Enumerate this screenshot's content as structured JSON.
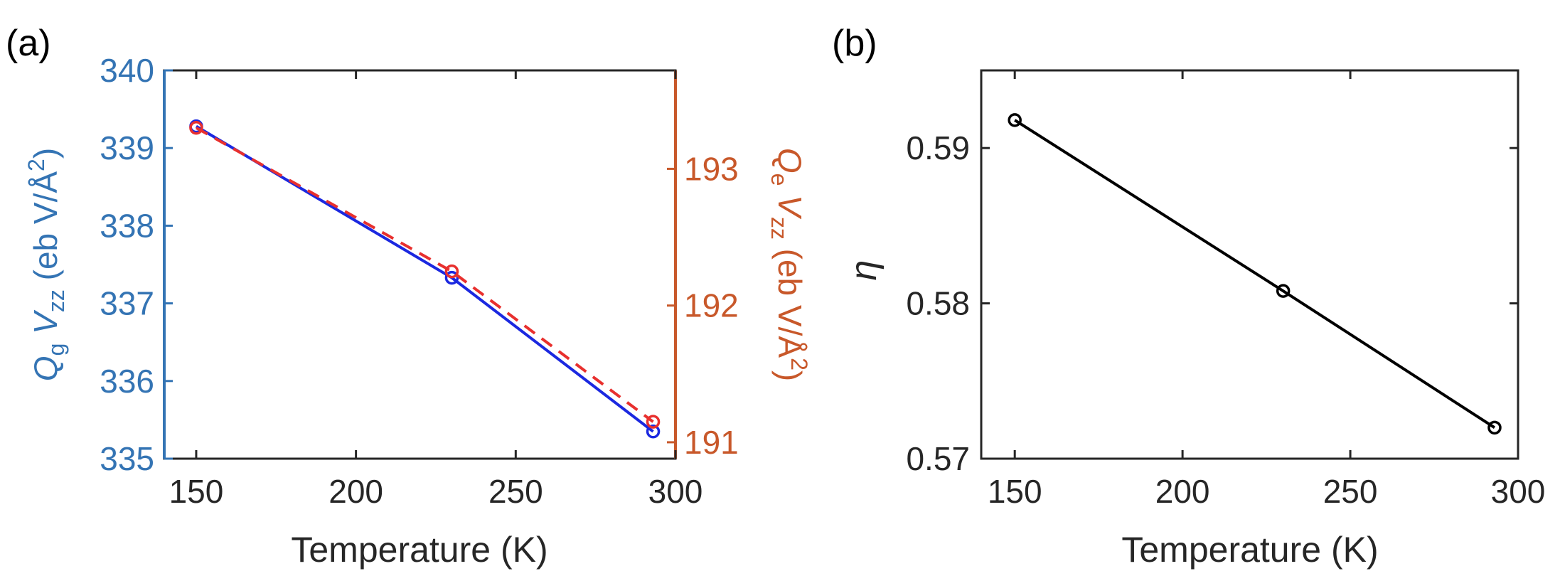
{
  "panels": [
    {
      "label": "(a)",
      "xlabel": "Temperature (K)",
      "ylabel_left": {
        "main": "Q",
        "sub1": "g",
        "mid": " V",
        "sub2": "zz",
        "tail": " (eb V/Å",
        "sup": "2",
        "end": ")"
      },
      "ylabel_right": {
        "main": "Q",
        "sub1": "e",
        "mid": " V",
        "sub2": "zz",
        "tail": " (eb V/Å",
        "sup": "2",
        "end": ")"
      }
    },
    {
      "label": "(b)",
      "xlabel": "Temperature (K)",
      "ylabel": "η"
    }
  ],
  "chart_data": [
    {
      "type": "line",
      "title": "",
      "xlabel": "Temperature (K)",
      "xlim": [
        140,
        300
      ],
      "xticks": [
        150,
        200,
        250,
        300
      ],
      "y_axes": [
        {
          "side": "left",
          "label": "Q_g V_zz (eb V/Å^2)",
          "ylim": [
            335,
            340
          ],
          "ticks": [
            335,
            336,
            337,
            338,
            339,
            340
          ],
          "color": "#3474b4"
        },
        {
          "side": "right",
          "label": "Q_e V_zz (eb V/Å^2)",
          "ylim": [
            190.88,
            193.72
          ],
          "ticks": [
            191,
            192,
            193
          ],
          "color": "#c8582a"
        }
      ],
      "x": [
        150,
        230,
        293
      ],
      "series": [
        {
          "axis": "left",
          "values": [
            339.28,
            337.33,
            335.35
          ],
          "color": "#1b28e0",
          "line_style": "solid",
          "marker": "circle"
        },
        {
          "axis": "right",
          "values": [
            193.3,
            192.25,
            191.15
          ],
          "color": "#e8302e",
          "line_style": "dashed",
          "marker": "circle"
        }
      ],
      "grid": false,
      "legend": "none"
    },
    {
      "type": "line",
      "title": "",
      "xlabel": "Temperature (K)",
      "ylabel": "η",
      "xlim": [
        140,
        300
      ],
      "xticks": [
        150,
        200,
        250,
        300
      ],
      "ylim": [
        0.57,
        0.595
      ],
      "yticks": [
        0.57,
        0.58,
        0.59
      ],
      "ytick_labels": [
        "0.57",
        "0.58",
        "0.59"
      ],
      "x": [
        150,
        230,
        293
      ],
      "series": [
        {
          "values": [
            0.5918,
            0.5808,
            0.572
          ],
          "color": "#000000",
          "line_style": "solid",
          "marker": "circle"
        }
      ],
      "grid": false,
      "legend": "none"
    }
  ]
}
